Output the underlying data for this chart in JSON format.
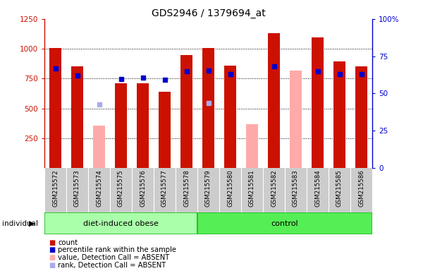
{
  "title": "GDS2946 / 1379694_at",
  "samples": [
    "GSM215572",
    "GSM215573",
    "GSM215574",
    "GSM215575",
    "GSM215576",
    "GSM215577",
    "GSM215578",
    "GSM215579",
    "GSM215580",
    "GSM215581",
    "GSM215582",
    "GSM215583",
    "GSM215584",
    "GSM215585",
    "GSM215586"
  ],
  "red_bars": [
    1005,
    850,
    null,
    710,
    710,
    640,
    950,
    1005,
    860,
    null,
    1130,
    null,
    1095,
    895,
    855
  ],
  "pink_bars": [
    null,
    null,
    355,
    null,
    null,
    null,
    null,
    null,
    null,
    370,
    null,
    820,
    null,
    null,
    null
  ],
  "blue_markers": [
    835,
    775,
    null,
    745,
    760,
    740,
    810,
    815,
    785,
    null,
    850,
    null,
    810,
    785,
    790
  ],
  "lightblue_markers": [
    null,
    null,
    535,
    null,
    null,
    null,
    null,
    545,
    null,
    null,
    null,
    null,
    null,
    null,
    null
  ],
  "ylim_left": [
    0,
    1250
  ],
  "ylim_right": [
    0,
    100
  ],
  "yticks_left": [
    250,
    500,
    750,
    1000,
    1250
  ],
  "yticks_right": [
    0,
    25,
    50,
    75,
    100
  ],
  "bar_width": 0.55,
  "red_color": "#cc1100",
  "pink_color": "#ffaaaa",
  "blue_color": "#0000cc",
  "lightblue_color": "#aaaaee",
  "plot_bg": "#ffffff",
  "grid_color": "#000000",
  "sample_bg": "#cccccc",
  "group1_color": "#aaffaa",
  "group2_color": "#55ee55",
  "group_border": "#22bb22",
  "legend_items": [
    "count",
    "percentile rank within the sample",
    "value, Detection Call = ABSENT",
    "rank, Detection Call = ABSENT"
  ],
  "legend_colors": [
    "#cc1100",
    "#0000cc",
    "#ffaaaa",
    "#aaaaee"
  ]
}
